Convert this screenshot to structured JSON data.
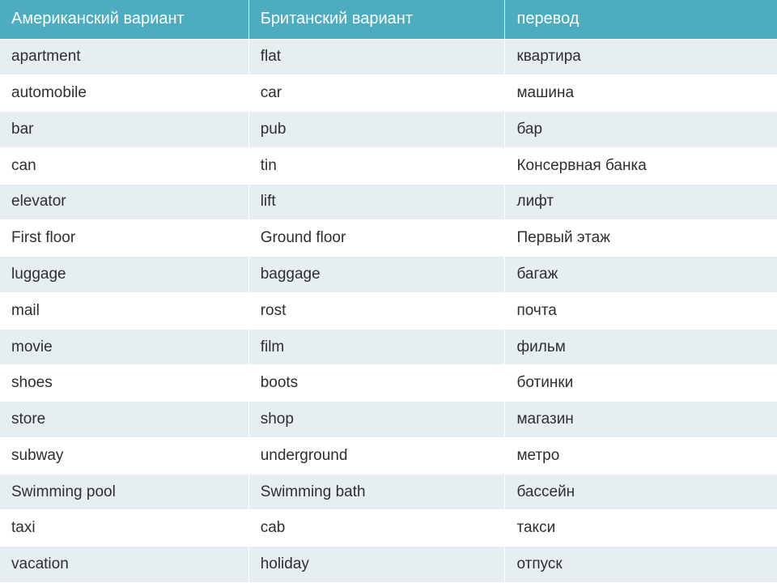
{
  "table": {
    "columns": [
      "Американский вариант",
      "Британский вариант",
      "перевод"
    ],
    "column_widths_pct": [
      32,
      33,
      35
    ],
    "rows": [
      [
        "apartment",
        "flat",
        "квартира"
      ],
      [
        "automobile",
        "car",
        "машина"
      ],
      [
        "bar",
        "pub",
        "бар"
      ],
      [
        "can",
        "tin",
        "Консервная банка"
      ],
      [
        "elevator",
        "lift",
        "лифт"
      ],
      [
        "First floor",
        "Ground floor",
        "Первый этаж"
      ],
      [
        "luggage",
        "baggage",
        "багаж"
      ],
      [
        "mail",
        "rost",
        "почта"
      ],
      [
        "movie",
        "film",
        "фильм"
      ],
      [
        "shoes",
        "boots",
        "ботинки"
      ],
      [
        "store",
        "shop",
        "магазин"
      ],
      [
        "subway",
        "underground",
        "метро"
      ],
      [
        "Swimming pool",
        "Swimming bath",
        "бассейн"
      ],
      [
        "taxi",
        "cab",
        "такси"
      ],
      [
        "vacation",
        "holiday",
        "отпуск"
      ]
    ],
    "style": {
      "header_bg": "#4eacc1",
      "header_fg": "#ffffff",
      "header_border": "#ffffff",
      "header_fontsize": 20,
      "cell_fg": "#2f2f2f",
      "cell_border": "#ffffff",
      "cell_fontsize": 19,
      "row_bg_odd": "#e7eef1",
      "row_bg_even": "#ffffff"
    }
  }
}
